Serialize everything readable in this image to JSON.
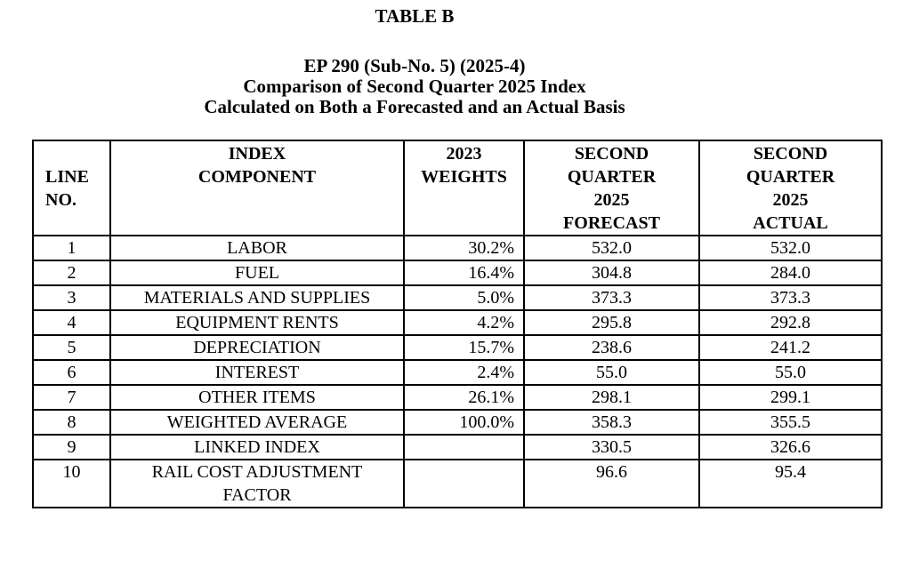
{
  "doc": {
    "table_label": "TABLE B",
    "subtitle_line_1": "EP 290 (Sub-No. 5) (2025-4)",
    "subtitle_line_2": "Comparison of Second Quarter 2025 Index",
    "subtitle_line_3": "Calculated on Both a Forecasted and an Actual Basis"
  },
  "table": {
    "headers": {
      "line_no": "LINE\nNO.",
      "component": "INDEX\nCOMPONENT",
      "weights": "2023\nWEIGHTS",
      "forecast": "SECOND\nQUARTER\n2025\nFORECAST",
      "actual": "SECOND\nQUARTER\n2025\nACTUAL"
    },
    "rows": [
      {
        "line_no": "1",
        "component": "LABOR",
        "weight": "30.2%",
        "forecast": "532.0",
        "actual": "532.0"
      },
      {
        "line_no": "2",
        "component": "FUEL",
        "weight": "16.4%",
        "forecast": "304.8",
        "actual": "284.0"
      },
      {
        "line_no": "3",
        "component": "MATERIALS AND SUPPLIES",
        "weight": "5.0%",
        "forecast": "373.3",
        "actual": "373.3"
      },
      {
        "line_no": "4",
        "component": "EQUIPMENT RENTS",
        "weight": "4.2%",
        "forecast": "295.8",
        "actual": "292.8"
      },
      {
        "line_no": "5",
        "component": "DEPRECIATION",
        "weight": "15.7%",
        "forecast": "238.6",
        "actual": "241.2"
      },
      {
        "line_no": "6",
        "component": "INTEREST",
        "weight": "2.4%",
        "forecast": "55.0",
        "actual": "55.0"
      },
      {
        "line_no": "7",
        "component": "OTHER ITEMS",
        "weight": "26.1%",
        "forecast": "298.1",
        "actual": "299.1"
      },
      {
        "line_no": "8",
        "component": "WEIGHTED AVERAGE",
        "weight": "100.0%",
        "forecast": "358.3",
        "actual": "355.5"
      },
      {
        "line_no": "9",
        "component": "LINKED INDEX",
        "weight": "",
        "forecast": "330.5",
        "actual": "326.6"
      },
      {
        "line_no": "10",
        "component": "RAIL COST ADJUSTMENT\nFACTOR",
        "weight": "",
        "forecast": "96.6",
        "actual": "95.4"
      }
    ],
    "colors": {
      "text": "#000000",
      "border": "#000000",
      "background": "#ffffff"
    }
  }
}
